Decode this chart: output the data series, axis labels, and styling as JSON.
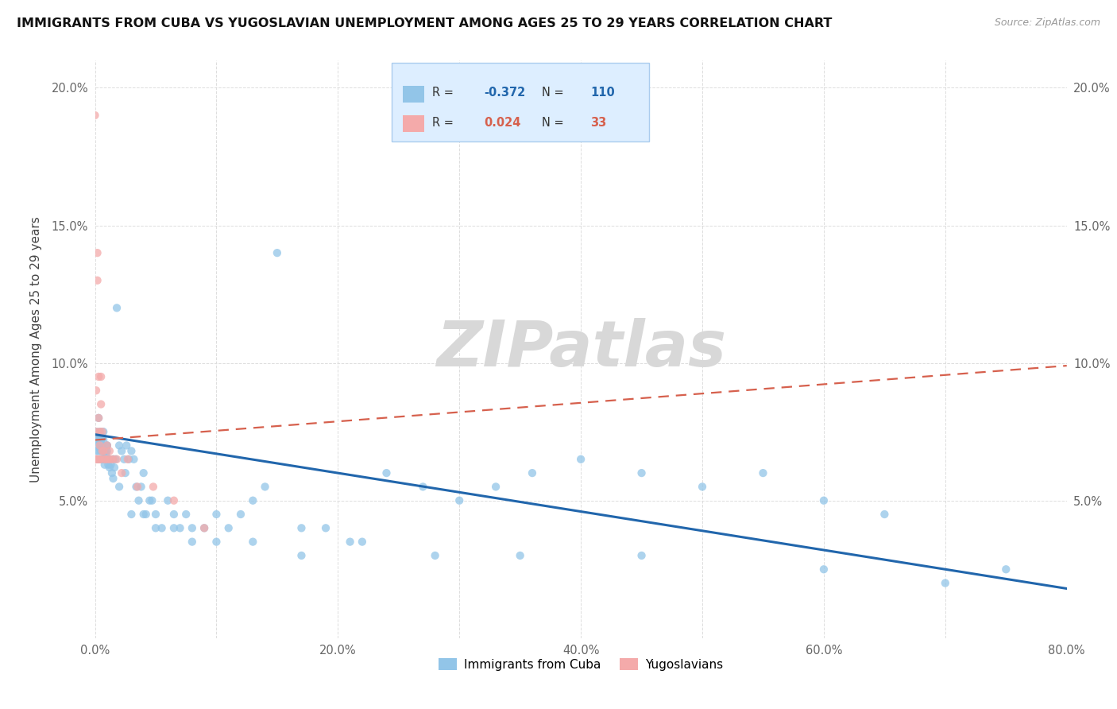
{
  "title": "IMMIGRANTS FROM CUBA VS YUGOSLAVIAN UNEMPLOYMENT AMONG AGES 25 TO 29 YEARS CORRELATION CHART",
  "source": "Source: ZipAtlas.com",
  "ylabel": "Unemployment Among Ages 25 to 29 years",
  "xlim": [
    0.0,
    0.8
  ],
  "ylim": [
    0.0,
    0.21
  ],
  "xticks": [
    0.0,
    0.1,
    0.2,
    0.3,
    0.4,
    0.5,
    0.6,
    0.7,
    0.8
  ],
  "xticklabels": [
    "0.0%",
    "",
    "20.0%",
    "",
    "40.0%",
    "",
    "60.0%",
    "",
    "80.0%"
  ],
  "yticks": [
    0.0,
    0.05,
    0.1,
    0.15,
    0.2
  ],
  "yticklabels_left": [
    "",
    "5.0%",
    "10.0%",
    "15.0%",
    "20.0%"
  ],
  "yticklabels_right": [
    "",
    "5.0%",
    "10.0%",
    "15.0%",
    "20.0%"
  ],
  "cuba_color": "#92C5E8",
  "yugo_color": "#F4AAAA",
  "cuba_line_color": "#2166ac",
  "yugo_line_color": "#d6604d",
  "R_cuba": -0.372,
  "N_cuba": 110,
  "R_yugo": 0.024,
  "N_yugo": 33,
  "cuba_scatter_x": [
    0.001,
    0.001,
    0.001,
    0.002,
    0.002,
    0.002,
    0.003,
    0.003,
    0.003,
    0.004,
    0.004,
    0.004,
    0.004,
    0.005,
    0.005,
    0.005,
    0.005,
    0.006,
    0.006,
    0.006,
    0.006,
    0.007,
    0.007,
    0.007,
    0.008,
    0.008,
    0.008,
    0.009,
    0.009,
    0.009,
    0.01,
    0.01,
    0.01,
    0.011,
    0.012,
    0.012,
    0.013,
    0.014,
    0.015,
    0.016,
    0.017,
    0.018,
    0.02,
    0.022,
    0.024,
    0.026,
    0.028,
    0.03,
    0.032,
    0.034,
    0.036,
    0.038,
    0.04,
    0.042,
    0.045,
    0.047,
    0.05,
    0.055,
    0.06,
    0.065,
    0.07,
    0.075,
    0.08,
    0.09,
    0.1,
    0.11,
    0.12,
    0.13,
    0.14,
    0.15,
    0.17,
    0.19,
    0.21,
    0.24,
    0.27,
    0.3,
    0.33,
    0.36,
    0.4,
    0.45,
    0.5,
    0.55,
    0.6,
    0.65,
    0.7,
    0.75,
    0.003,
    0.004,
    0.005,
    0.006,
    0.007,
    0.008,
    0.01,
    0.012,
    0.015,
    0.02,
    0.025,
    0.03,
    0.04,
    0.05,
    0.065,
    0.08,
    0.1,
    0.13,
    0.17,
    0.22,
    0.28,
    0.35,
    0.45,
    0.6
  ],
  "cuba_scatter_y": [
    0.075,
    0.068,
    0.072,
    0.07,
    0.073,
    0.065,
    0.071,
    0.068,
    0.074,
    0.069,
    0.073,
    0.065,
    0.071,
    0.07,
    0.072,
    0.065,
    0.068,
    0.073,
    0.068,
    0.065,
    0.07,
    0.072,
    0.068,
    0.075,
    0.065,
    0.068,
    0.063,
    0.067,
    0.065,
    0.068,
    0.07,
    0.065,
    0.068,
    0.063,
    0.062,
    0.065,
    0.063,
    0.06,
    0.058,
    0.062,
    0.065,
    0.12,
    0.07,
    0.068,
    0.065,
    0.07,
    0.065,
    0.068,
    0.065,
    0.055,
    0.05,
    0.055,
    0.06,
    0.045,
    0.05,
    0.05,
    0.045,
    0.04,
    0.05,
    0.045,
    0.04,
    0.045,
    0.035,
    0.04,
    0.035,
    0.04,
    0.045,
    0.05,
    0.055,
    0.14,
    0.04,
    0.04,
    0.035,
    0.06,
    0.055,
    0.05,
    0.055,
    0.06,
    0.065,
    0.06,
    0.055,
    0.06,
    0.05,
    0.045,
    0.02,
    0.025,
    0.08,
    0.075,
    0.072,
    0.073,
    0.065,
    0.065,
    0.07,
    0.065,
    0.065,
    0.055,
    0.06,
    0.045,
    0.045,
    0.04,
    0.04,
    0.04,
    0.045,
    0.035,
    0.03,
    0.035,
    0.03,
    0.03,
    0.03,
    0.025
  ],
  "yugo_scatter_x": [
    0.0,
    0.001,
    0.001,
    0.001,
    0.002,
    0.002,
    0.003,
    0.003,
    0.003,
    0.004,
    0.004,
    0.004,
    0.005,
    0.005,
    0.005,
    0.006,
    0.006,
    0.007,
    0.008,
    0.009,
    0.01,
    0.011,
    0.012,
    0.013,
    0.015,
    0.018,
    0.022,
    0.027,
    0.035,
    0.048,
    0.065,
    0.09,
    0.001
  ],
  "yugo_scatter_y": [
    0.19,
    0.075,
    0.09,
    0.065,
    0.14,
    0.13,
    0.095,
    0.08,
    0.065,
    0.075,
    0.07,
    0.065,
    0.095,
    0.085,
    0.065,
    0.075,
    0.068,
    0.068,
    0.065,
    0.065,
    0.07,
    0.065,
    0.068,
    0.065,
    0.065,
    0.065,
    0.06,
    0.065,
    0.055,
    0.055,
    0.05,
    0.04,
    0.065
  ],
  "cuba_trendline_x": [
    0.0,
    0.8
  ],
  "cuba_trendline_y": [
    0.074,
    0.018
  ],
  "yugo_trendline_x": [
    0.0,
    0.8
  ],
  "yugo_trendline_y": [
    0.072,
    0.099
  ],
  "grid_color": "#dddddd",
  "background_color": "#ffffff",
  "watermark_text": "ZIPatlas",
  "legend_label_cuba": "Immigrants from Cuba",
  "legend_label_yugo": "Yugoslavians"
}
